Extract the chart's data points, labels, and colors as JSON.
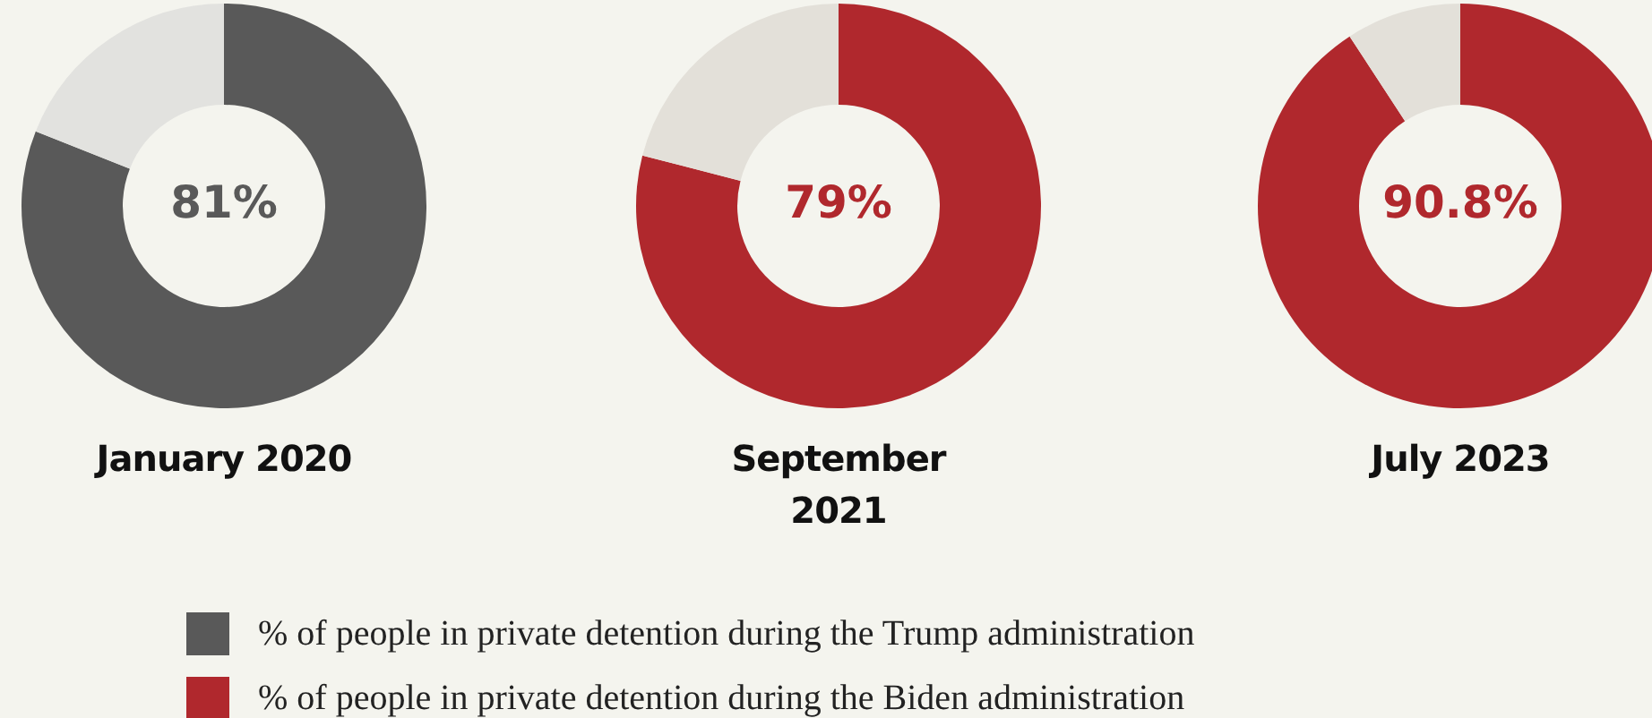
{
  "chart_data": [
    {
      "type": "donut",
      "title": "January 2020",
      "categories": [
        "% of people in private detention during the Trump administration",
        null
      ],
      "values": [
        81,
        19
      ],
      "colors": [
        "#595959",
        "#e2e2df"
      ],
      "value_labels": [
        "81%",
        null
      ],
      "legend": "bottom"
    },
    {
      "type": "donut",
      "title": "September 2021",
      "categories": [
        "% of people in private detention during the Biden administration",
        null
      ],
      "values": [
        79,
        21
      ],
      "colors": [
        "#b0282d",
        "#e3e0d9"
      ],
      "value_labels": [
        "79%",
        null
      ],
      "legend": "bottom"
    },
    {
      "type": "donut",
      "title": "July 2023",
      "categories": [
        null,
        null
      ],
      "values": [
        90.8,
        9.2
      ],
      "colors": [
        "#b0282d",
        "#e3e0d9"
      ],
      "value_labels": [
        "90.8%",
        null
      ]
    }
  ]
}
